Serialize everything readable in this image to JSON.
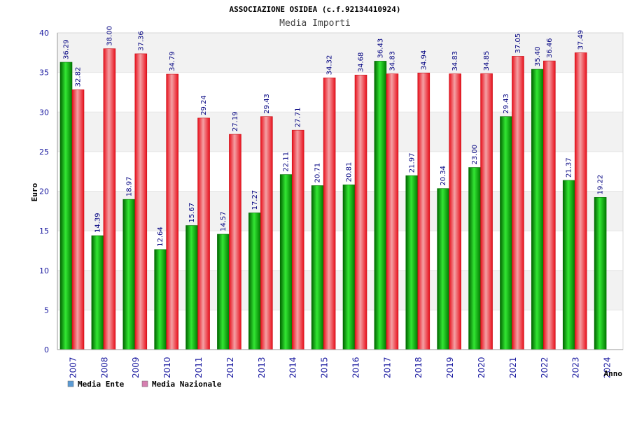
{
  "chart_data": {
    "type": "bar",
    "title": "ASSOCIAZIONE OSIDEA (c.f.92134410924)",
    "subtitle": "Media Importi",
    "ylabel": "Euro",
    "xlabel": "Anno",
    "ylim": [
      0,
      40
    ],
    "yticks": [
      0,
      5,
      10,
      15,
      20,
      25,
      30,
      35,
      40
    ],
    "grid": "horizontal bands",
    "legend_position": "bottom-left",
    "categories": [
      "2007",
      "2008",
      "2009",
      "2010",
      "2011",
      "2012",
      "2013",
      "2014",
      "2015",
      "2016",
      "2017",
      "2018",
      "2019",
      "2020",
      "2021",
      "2022",
      "2023",
      "2024"
    ],
    "series": [
      {
        "name": "Media Ente",
        "legend_color": "#5b9bd5",
        "bar_color": "#00b000",
        "values": [
          36.29,
          14.39,
          18.97,
          12.64,
          15.67,
          14.57,
          17.27,
          22.11,
          20.71,
          20.81,
          36.43,
          21.97,
          20.34,
          23.0,
          29.43,
          35.4,
          21.37,
          19.22
        ],
        "labels": [
          "36.29",
          "14.39",
          "18.97",
          "12.64",
          "15.67",
          "14.57",
          "17.27",
          "22.11",
          "20.71",
          "20.81",
          "36.43",
          "21.97",
          "20.34",
          "23.00",
          "29.43",
          "35.40",
          "21.37",
          "19.22"
        ]
      },
      {
        "name": "Media Nazionale",
        "legend_color": "#d67fb0",
        "bar_color": "#e8202a",
        "values": [
          32.82,
          38.0,
          37.36,
          34.79,
          29.24,
          27.19,
          29.43,
          27.71,
          34.32,
          34.68,
          34.83,
          34.94,
          34.83,
          34.85,
          37.05,
          36.46,
          37.49,
          null
        ],
        "labels": [
          "32.82",
          "38.00",
          "37.36",
          "34.79",
          "29.24",
          "27.19",
          "29.43",
          "27.71",
          "34.32",
          "34.68",
          "34.83",
          "34.94",
          "34.83",
          "34.85",
          "37.05",
          "36.46",
          "37.49",
          ""
        ]
      }
    ]
  }
}
